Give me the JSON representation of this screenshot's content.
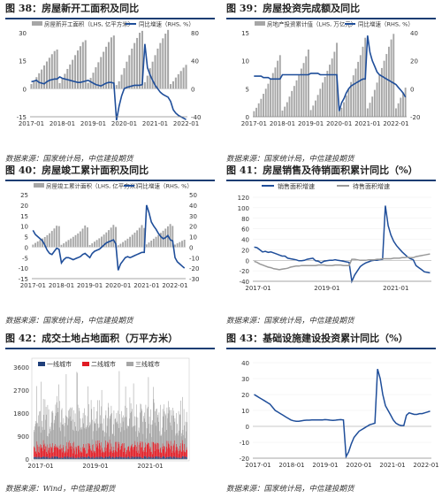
{
  "panels": [
    {
      "title": "图 38：房屋新开工面积及同比",
      "source": "数据来源：国家统计局，中信建投期货",
      "chart_data": {
        "type": "bar",
        "legend": [
          "房屋新开工面积（LHS, 亿平方米）",
          "同比增速（RHS, %）"
        ],
        "x_labels": [
          "2017-01",
          "2018-01",
          "2019-01",
          "2020-01",
          "2021-01",
          "2022-01"
        ],
        "left_ticks": [
          "-15",
          "0",
          "15",
          "30"
        ],
        "left_range": [
          -15,
          30
        ],
        "right_ticks": [
          "-40",
          "0",
          "40",
          "80"
        ],
        "right_range": [
          -40,
          80
        ],
        "bars": [
          2.5,
          4.2,
          6.2,
          8.3,
          10.3,
          12.5,
          14.6,
          16.6,
          18.5,
          20.2,
          21.0,
          3.0,
          5.5,
          8.0,
          10.6,
          13.0,
          15.5,
          18.0,
          20.5,
          22.8,
          25.0,
          26.0,
          3.2,
          5.8,
          8.6,
          11.5,
          14.2,
          17.0,
          19.8,
          22.5,
          25.0,
          27.5,
          28.5,
          2.0,
          4.0,
          7.5,
          11.0,
          14.5,
          18.0,
          21.5,
          24.5,
          27.2,
          30.0,
          31.0,
          3.5,
          7.0,
          11.0,
          14.5,
          18.0,
          21.5,
          24.5,
          27.0,
          29.5,
          31.5,
          2.5,
          4.0,
          6.0,
          7.8,
          9.5,
          11.3,
          12.8
        ],
        "line": [
          10,
          11,
          12,
          9,
          8,
          7,
          10,
          12,
          13,
          14,
          14,
          17,
          15,
          14,
          13,
          12,
          11,
          10,
          9,
          9,
          10,
          11,
          12,
          10,
          8,
          6,
          5,
          4,
          6,
          8,
          9,
          9,
          8,
          -45,
          -25,
          -10,
          0,
          2,
          3,
          4,
          5,
          5,
          5,
          6,
          64,
          30,
          20,
          12,
          5,
          0,
          -5,
          -8,
          -10,
          -12,
          -18,
          -30,
          -35,
          -38,
          -40,
          -42,
          -44
        ]
      }
    },
    {
      "title": "图 39：房屋投资完成额及同比",
      "source": "数据来源：国家统计局，中信建投期货",
      "chart_data": {
        "type": "bar",
        "legend": [
          "房地产投资累计值（LHS, 万亿元）",
          "同比增速（RHS, %）"
        ],
        "x_labels": [
          "2017-01",
          "2018-01",
          "2019-01",
          "2020-01",
          "2021-01",
          "2022-01"
        ],
        "left_ticks": [
          "0",
          "5",
          "10",
          "15"
        ],
        "left_range": [
          0,
          15
        ],
        "right_ticks": [
          "-20",
          "0",
          "20",
          "40"
        ],
        "right_range": [
          -20,
          40
        ],
        "bars": [
          1.0,
          1.6,
          2.4,
          3.2,
          4.1,
          5.0,
          5.9,
          6.8,
          7.8,
          8.8,
          10.0,
          11.0,
          1.1,
          1.8,
          2.6,
          3.6,
          4.6,
          5.5,
          6.5,
          7.5,
          8.6,
          9.6,
          10.8,
          12.0,
          1.2,
          2.0,
          2.9,
          3.9,
          5.0,
          6.1,
          7.1,
          8.2,
          9.3,
          10.4,
          11.6,
          13.2,
          1.0,
          1.6,
          2.6,
          3.8,
          5.0,
          6.2,
          7.4,
          8.6,
          9.8,
          11.0,
          12.5,
          14.1,
          1.5,
          2.5,
          3.6,
          4.8,
          6.1,
          7.4,
          8.7,
          10.0,
          11.2,
          12.5,
          13.8,
          14.8,
          1.5,
          2.4,
          3.4,
          4.3,
          5.2
        ],
        "line": [
          9,
          9,
          9,
          9,
          8,
          8,
          8,
          7,
          7,
          7,
          7,
          7,
          10,
          10,
          10,
          10,
          10,
          10,
          10,
          10,
          10,
          10,
          10,
          10,
          11,
          11,
          11,
          11,
          10,
          10,
          10,
          10,
          10,
          10,
          10,
          10,
          -16,
          -10,
          -7,
          -3,
          0,
          2,
          3,
          4,
          5,
          6,
          7,
          7,
          38,
          26,
          20,
          16,
          12,
          10,
          9,
          8,
          7,
          6,
          5,
          4,
          3,
          1,
          -1,
          -3,
          -6
        ]
      }
    },
    {
      "title": "图 40：房屋竣工累计面积及同比",
      "source": "数据来源：国家统计局，中信建投期货",
      "chart_data": {
        "type": "bar",
        "legend": [
          "房屋竣工累计面积（LHS, 亿平方米）",
          "同比增速（RHS, %）"
        ],
        "x_labels": [
          "2017-01",
          "2018-01",
          "2019-01",
          "2020-01",
          "2021-01",
          "2022-01"
        ],
        "left_ticks": [
          "-15",
          "-10",
          "-5",
          "0",
          "5",
          "10",
          "15",
          "20",
          "25"
        ],
        "left_range": [
          -15,
          25
        ],
        "right_ticks": [
          "-30",
          "-20",
          "-10",
          "0",
          "10",
          "20",
          "30",
          "40",
          "50"
        ],
        "right_range": [
          -30,
          50
        ],
        "bars": [
          1.2,
          2.0,
          2.7,
          3.4,
          4.1,
          4.8,
          5.7,
          6.6,
          7.7,
          8.9,
          10.2,
          10.0,
          1.1,
          1.8,
          2.6,
          3.4,
          4.1,
          4.9,
          5.7,
          6.5,
          7.5,
          8.8,
          10.3,
          9.4,
          1.0,
          1.8,
          2.6,
          3.4,
          4.2,
          5.0,
          6.0,
          7.0,
          8.1,
          9.3,
          10.6,
          9.6,
          0.9,
          1.6,
          2.4,
          3.2,
          4.0,
          4.9,
          5.9,
          6.9,
          8.0,
          9.2,
          10.5,
          9.1,
          1.3,
          2.2,
          3.1,
          4.0,
          4.9,
          5.8,
          6.8,
          7.8,
          8.8,
          9.9,
          11.0,
          10.1,
          1.2,
          1.8,
          2.4,
          3.0,
          3.5
        ],
        "line": [
          16,
          12,
          10,
          8,
          6,
          2,
          -3,
          -6,
          -7,
          -4,
          -1,
          -2,
          -15,
          -12,
          -10,
          -10,
          -11,
          -12,
          -11,
          -10,
          -9,
          -7,
          -6,
          -8,
          -10,
          -6,
          -4,
          -3,
          -2,
          0,
          2,
          4,
          5,
          6,
          7,
          3,
          -22,
          -16,
          -13,
          -10,
          -9,
          -10,
          -9,
          -8,
          -7,
          -6,
          -5,
          -5,
          40,
          33,
          24,
          20,
          17,
          13,
          10,
          8,
          9,
          11,
          7,
          6,
          -10,
          -14,
          -16,
          -18,
          -20
        ]
      }
    },
    {
      "title": "图 41：房屋销售及待销面积累计同比（%）",
      "source": "数据来源：国家统计局，中信建投期货",
      "chart_data": {
        "type": "line",
        "series": [
          {
            "name": "销售面积增速",
            "color": "#1f4e9a",
            "values": [
              25,
              24,
              20,
              16,
              17,
              15,
              16,
              14,
              12,
              10,
              8,
              8,
              4,
              3,
              2,
              1,
              -1,
              -1,
              0,
              2,
              3,
              4,
              -1,
              -2,
              -5,
              -2,
              -1,
              0,
              0,
              1,
              0,
              -1,
              -2,
              -3,
              -4,
              -40,
              -28,
              -20,
              -12,
              -8,
              -5,
              -3,
              -1,
              0,
              0,
              1,
              2,
              104,
              66,
              48,
              36,
              28,
              22,
              16,
              11,
              6,
              3,
              1,
              -10,
              -14,
              -18,
              -22,
              -23,
              -24
            ]
          },
          {
            "name": "待售面积增速",
            "color": "#999999",
            "values": [
              -2,
              -4,
              -7,
              -9,
              -11,
              -13,
              -14,
              -16,
              -17,
              -18,
              -17,
              -16,
              -15,
              -13,
              -12,
              -11,
              -11,
              -10,
              -10,
              -10,
              -10,
              -10,
              -10,
              -9,
              -9,
              -9,
              -10,
              -10,
              -10,
              -9,
              -9,
              -9,
              -10,
              -10,
              -10,
              2,
              2,
              1,
              0,
              0,
              0,
              1,
              1,
              1,
              2,
              2,
              3,
              3,
              3,
              3,
              4,
              4,
              4,
              5,
              5,
              6,
              5,
              5,
              7,
              8,
              9,
              10,
              11,
              12
            ]
          }
        ],
        "x_labels": [
          "2017-01",
          "2019-01",
          "2021-01"
        ],
        "y_ticks": [
          "-40",
          "-20",
          "0",
          "20",
          "40",
          "60",
          "80",
          "100",
          "120"
        ],
        "y_range": [
          -40,
          120
        ]
      }
    },
    {
      "title": "图 42：成交土地占地面积（万平方米）",
      "source": "数据来源：Wind，中信建投期货",
      "chart_data": {
        "type": "stacked-bar",
        "series": [
          {
            "name": "一线城市",
            "color": "#1f3f7a"
          },
          {
            "name": "二线城市",
            "color": "#e01b23"
          },
          {
            "name": "三线城市",
            "color": "#a6a6a6"
          }
        ],
        "x_labels": [
          "2017-01",
          "2019-01",
          "2021-01"
        ],
        "y_ticks": [
          "0",
          "900",
          "1800",
          "2700",
          "3600"
        ],
        "y_range": [
          0,
          3600
        ],
        "note": "weekly data, 2017-01 to 2022-06; first-tier mostly below 100, second-tier mostly below 700, third-tier mostly 800-1800 with a peak near 3600"
      }
    },
    {
      "title": "图 43：基础设施建设投资累计同比（%）",
      "source": "数据来源：国家统计局，中信建投期货",
      "chart_data": {
        "type": "line",
        "series": [
          {
            "name": "",
            "color": "#1f4e9a",
            "values": [
              20,
              19,
              18,
              17,
              16,
              15,
              14,
              12,
              10,
              9,
              8,
              7,
              6,
              5,
              4,
              3.5,
              3.2,
              3.2,
              3.5,
              3.7,
              3.9,
              3.9,
              4.0,
              4.0,
              4.0,
              4.0,
              4.0,
              4.2,
              4.1,
              3.9,
              3.8,
              3.9,
              4.1,
              4.2,
              4.0,
              -19,
              -16,
              -11,
              -7,
              -5,
              -3,
              -2,
              -1,
              0,
              1,
              1.5,
              2,
              36,
              30,
              20,
              13,
              10,
              7,
              4,
              2,
              1,
              0.5,
              0.5,
              7,
              8.5,
              8,
              7.5,
              7.5,
              8,
              8,
              8.5,
              9,
              9.5
            ]
          }
        ],
        "x_labels": [
          "2017-01",
          "2018-01",
          "2019-01",
          "2020-01",
          "2021-01",
          "2022-01"
        ],
        "y_ticks": [
          "-20",
          "-10",
          "0",
          "10",
          "20",
          "30",
          "40"
        ],
        "y_range": [
          -20,
          40
        ]
      }
    }
  ]
}
